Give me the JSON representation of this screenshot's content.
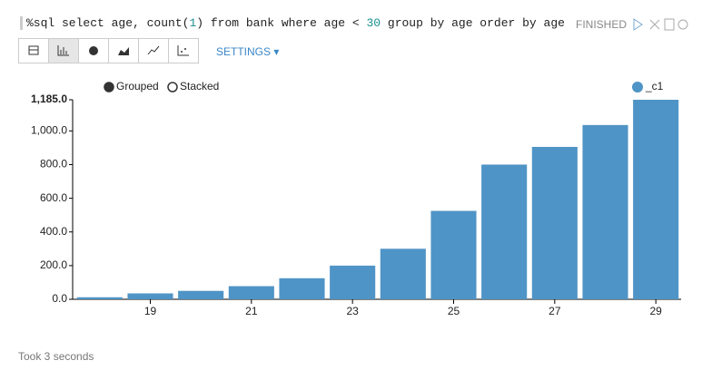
{
  "query_parts": [
    "%sql select age, count(",
    "1",
    ") from bank where age < ",
    "30",
    " group by age order by age"
  ],
  "status": "FINISHED",
  "settings": "SETTINGS",
  "footer": "Took 3 seconds",
  "chart_data": {
    "type": "bar",
    "categories": [
      null,
      "19",
      null,
      "21",
      null,
      "23",
      null,
      "25",
      null,
      "27",
      null,
      "29"
    ],
    "series": [
      {
        "name": "_c1",
        "color": "#4f94c6",
        "values": [
          12,
          35,
          50,
          78,
          125,
          200,
          300,
          525,
          800,
          905,
          1035,
          1185
        ]
      }
    ],
    "ylim": [
      0,
      1185
    ],
    "yticks": [
      {
        "value": 0,
        "label": "0.0"
      },
      {
        "value": 200,
        "label": "200.0"
      },
      {
        "value": 400,
        "label": "400.0"
      },
      {
        "value": 600,
        "label": "600.0"
      },
      {
        "value": 800,
        "label": "800.0"
      },
      {
        "value": 1000,
        "label": "1,000.0"
      },
      {
        "value": 1185,
        "label": "1,185.0"
      }
    ],
    "mode_options": [
      "Grouped",
      "Stacked"
    ],
    "grid": false
  }
}
